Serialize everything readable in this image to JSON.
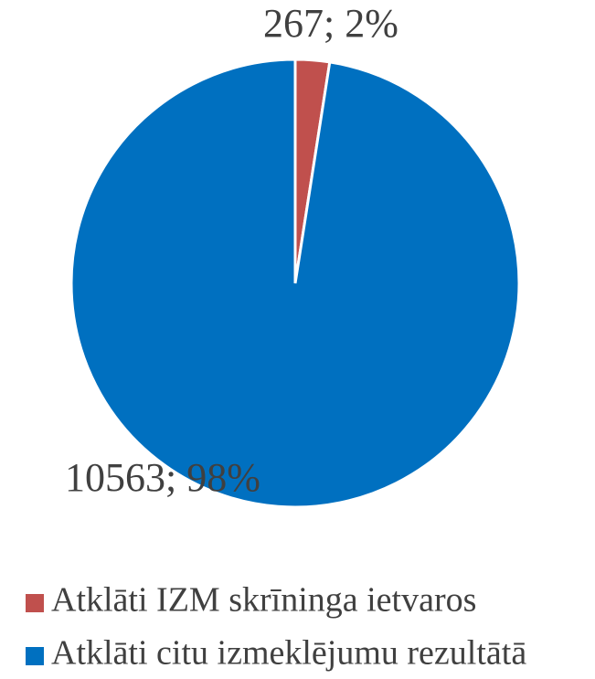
{
  "chart_data": {
    "type": "pie",
    "categories": [
      "Atklāti IZM skrīninga ietvaros",
      "Atklāti citu izmeklējumu rezultātā"
    ],
    "values": [
      267,
      10563
    ],
    "value_labels": [
      "267; 2%",
      "10563; 98%"
    ],
    "colors": [
      "#c0504d",
      "#0070c0"
    ],
    "legend": "bottom"
  }
}
